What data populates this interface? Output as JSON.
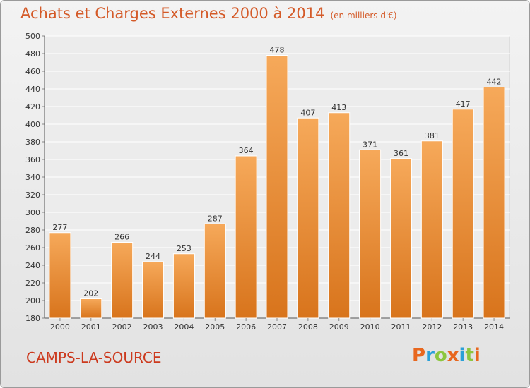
{
  "header": {
    "title": "Achats et Charges Externes 2000 à 2014",
    "unit": "(en milliers d'€)"
  },
  "footer": {
    "place": "CAMPS-LA-SOURCE",
    "logo": [
      "P",
      "r",
      "o",
      "x",
      "i",
      "t",
      "i"
    ]
  },
  "colors": {
    "title": "#d45a28",
    "bar_top": "#f6a95a",
    "bar_bottom": "#d8741c",
    "place": "#cc3a1e"
  },
  "chart_data": {
    "type": "bar",
    "categories": [
      "2000",
      "2001",
      "2002",
      "2003",
      "2004",
      "2005",
      "2006",
      "2007",
      "2008",
      "2009",
      "2010",
      "2011",
      "2012",
      "2013",
      "2014"
    ],
    "values": [
      277,
      202,
      266,
      244,
      253,
      287,
      364,
      478,
      407,
      413,
      371,
      361,
      381,
      417,
      442
    ],
    "title": "Achats et Charges Externes 2000 à 2014",
    "ylim": [
      180,
      500
    ],
    "yticks": [
      180,
      200,
      220,
      240,
      260,
      280,
      300,
      320,
      340,
      360,
      380,
      400,
      420,
      440,
      460,
      480,
      500
    ],
    "grid": true
  }
}
